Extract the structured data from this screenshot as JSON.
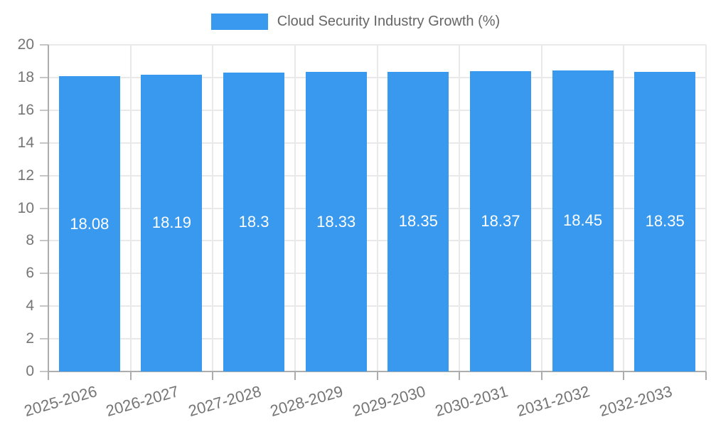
{
  "chart_data": {
    "type": "bar",
    "title": "Cloud Security Industry Growth (%)",
    "legend_position": "top",
    "categories": [
      "2025-2026",
      "2026-2027",
      "2027-2028",
      "2028-2029",
      "2029-2030",
      "2030-2031",
      "2031-2032",
      "2032-2033"
    ],
    "values": [
      18.08,
      18.19,
      18.3,
      18.33,
      18.35,
      18.37,
      18.45,
      18.35
    ],
    "value_labels": [
      "18.08",
      "18.19",
      "18.3",
      "18.33",
      "18.35",
      "18.37",
      "18.45",
      "18.35"
    ],
    "xlabel": "",
    "ylabel": "",
    "ylim": [
      0,
      20
    ],
    "ytick_step": 2,
    "ytick_labels": [
      "0",
      "2",
      "4",
      "6",
      "8",
      "10",
      "12",
      "14",
      "16",
      "18",
      "20"
    ],
    "grid": true,
    "colors": {
      "bar": "#3899EE",
      "bar_value_text": "#FFFFFF",
      "legend_text": "#666666",
      "axis_text": "#757575",
      "gridline": "#E9E9E9",
      "axis_line": "#ADADAD",
      "tick_mark": "#C6C6C6",
      "background": "#FFFFFF"
    }
  }
}
